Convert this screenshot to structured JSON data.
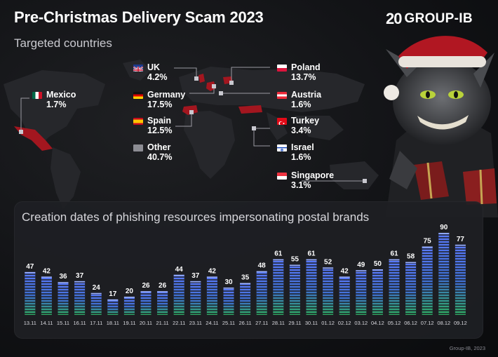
{
  "header": {
    "title": "Pre-Christmas Delivery Scam 2023",
    "subtitle": "Targeted countries",
    "logo_mark": "20",
    "logo_text": "GROUP-IB"
  },
  "countries": [
    {
      "key": "uk",
      "name": "UK",
      "pct": "4.2%",
      "flag": "uk-flag-icon"
    },
    {
      "key": "germany",
      "name": "Germany",
      "pct": "17.5%",
      "flag": "germany-flag-icon"
    },
    {
      "key": "spain",
      "name": "Spain",
      "pct": "12.5%",
      "flag": "spain-flag-icon"
    },
    {
      "key": "other",
      "name": "Other",
      "pct": "40.7%",
      "flag": "other-square-icon"
    },
    {
      "key": "mexico",
      "name": "Mexico",
      "pct": "1.7%",
      "flag": "mexico-flag-icon"
    },
    {
      "key": "poland",
      "name": "Poland",
      "pct": "13.7%",
      "flag": "poland-flag-icon"
    },
    {
      "key": "austria",
      "name": "Austria",
      "pct": "1.6%",
      "flag": "austria-flag-icon"
    },
    {
      "key": "turkey",
      "name": "Turkey",
      "pct": "3.4%",
      "flag": "turkey-flag-icon"
    },
    {
      "key": "israel",
      "name": "Israel",
      "pct": "1.6%",
      "flag": "israel-flag-icon"
    },
    {
      "key": "singapore",
      "name": "Singapore",
      "pct": "3.1%",
      "flag": "singapore-flag-icon"
    }
  ],
  "chart_data": {
    "type": "bar",
    "title": "Creation dates of phishing resources impersonating postal brands",
    "categories": [
      "13.11",
      "14.11",
      "15.11",
      "16.11",
      "17.11",
      "18.11",
      "19.11",
      "20.11",
      "21.11",
      "22.11",
      "23.11",
      "24.11",
      "25.11",
      "26.11",
      "27.11",
      "28.11",
      "29.11",
      "30.11",
      "01.12",
      "02.12",
      "03.12",
      "04.12",
      "05.12",
      "06.12",
      "07.12",
      "08.12",
      "09.12"
    ],
    "values": [
      47,
      42,
      36,
      37,
      24,
      17,
      20,
      26,
      26,
      44,
      37,
      42,
      30,
      35,
      48,
      61,
      55,
      61,
      52,
      42,
      49,
      50,
      61,
      58,
      75,
      90,
      77
    ],
    "ylim": [
      0,
      90
    ],
    "grid": false,
    "colors": {
      "top": "#5b7bff",
      "bottom": "#2fae63"
    }
  },
  "footer": "Group-IB, 2023"
}
